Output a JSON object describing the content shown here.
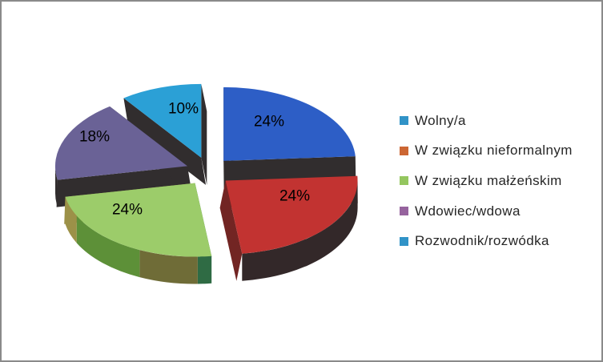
{
  "frame": {
    "background": "#ffffff",
    "border_color": "#8a8a8a"
  },
  "chart_data": {
    "type": "pie",
    "style": "3d-exploded-pie",
    "title": "",
    "unit": "%",
    "total": 100,
    "start_angle_deg": 0,
    "direction": "clockwise",
    "legend_position": "right",
    "data_label_color": "#000000",
    "slices": [
      {
        "label": "Wolny/a",
        "value": 24,
        "label_text": "24%",
        "top_color": "#2d5ec6",
        "wall_color": "#312d2e"
      },
      {
        "label": "W związku nieformalnym",
        "value": 24,
        "label_text": "24%",
        "top_color": "#c23331",
        "wall_color": "#332829",
        "radial_colors": [
          "#332829",
          "#722523"
        ]
      },
      {
        "label": "W związku małżeńskim",
        "value": 24,
        "label_text": "24%",
        "top_color": "#9ccc6a",
        "wall_color": "#5d9038",
        "radial_colors": [
          "#2f6b44",
          "#9c9148"
        ],
        "wall_segments": [
          {
            "frac": 0.07,
            "color": "#2f6b44"
          },
          {
            "frac": 0.3,
            "color": "#6f6c37"
          },
          {
            "frac": 0.45,
            "color": "#5d9038"
          },
          {
            "frac": 0.18,
            "color": "#9c9148"
          }
        ]
      },
      {
        "label": "Wdowiec/wdowa",
        "value": 18,
        "label_text": "18%",
        "top_color": "#6a6296",
        "wall_color": "#312d2e"
      },
      {
        "label": "Rozwodnik/rozwódka",
        "value": 10,
        "label_text": "10%",
        "top_color": "#2ba0d6",
        "wall_color": "#312d2e"
      }
    ],
    "legend": [
      {
        "label": "Wolny/a",
        "swatch": "#3193c7"
      },
      {
        "label": "W związku nieformalnym",
        "swatch": "#cc6633"
      },
      {
        "label": "W związku małżeńskim",
        "swatch": "#94c65f"
      },
      {
        "label": "Wdowiec/wdowa",
        "swatch": "#96639e"
      },
      {
        "label": "Rozwodnik/rozwódka",
        "swatch": "#3193c7"
      }
    ]
  }
}
